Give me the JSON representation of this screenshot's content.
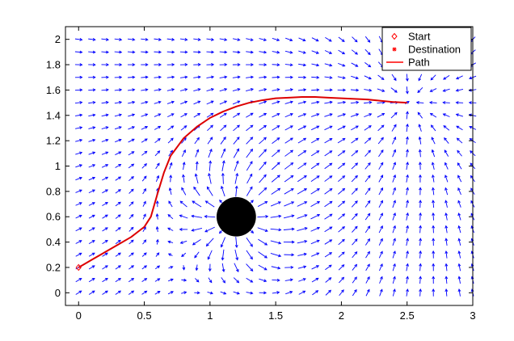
{
  "chart_data": {
    "type": "quiver",
    "title": "",
    "xlabel": "",
    "ylabel": "",
    "xlim": [
      -0.1,
      3.0
    ],
    "ylim": [
      -0.1,
      2.1
    ],
    "xticks": [
      0,
      0.5,
      1,
      1.5,
      2,
      2.5,
      3
    ],
    "xtick_labels": [
      "0",
      "0.5",
      "1",
      "1.5",
      "2",
      "2.5",
      "3"
    ],
    "yticks": [
      0,
      0.2,
      0.4,
      0.6,
      0.8,
      1,
      1.2,
      1.4,
      1.6,
      1.8,
      2
    ],
    "ytick_labels": [
      "0",
      "0.2",
      "0.4",
      "0.6",
      "0.8",
      "1",
      "1.2",
      "1.4",
      "1.6",
      "1.8",
      "2"
    ],
    "grid": false,
    "legend_position": "top-right",
    "start": {
      "x": 0,
      "y": 0.2
    },
    "destination": {
      "x": 2.5,
      "y": 1.5
    },
    "obstacle": {
      "x": 1.2,
      "y": 0.6,
      "radius": 0.15
    },
    "vector_field": {
      "x_start": 0,
      "x_end": 3,
      "x_step": 0.1,
      "y_start": 0,
      "y_end": 2,
      "y_step": 0.1,
      "model": "attractive field toward destination plus repulsive field around obstacle"
    },
    "path": {
      "x": [
        0,
        0.1,
        0.2,
        0.3,
        0.4,
        0.5,
        0.55,
        0.6,
        0.65,
        0.7,
        0.8,
        0.9,
        1.0,
        1.1,
        1.2,
        1.3,
        1.4,
        1.5,
        1.6,
        1.7,
        1.8,
        1.9,
        2.0,
        2.1,
        2.2,
        2.3,
        2.4,
        2.5
      ],
      "y": [
        0.2,
        0.26,
        0.32,
        0.38,
        0.44,
        0.52,
        0.6,
        0.78,
        0.95,
        1.08,
        1.22,
        1.31,
        1.38,
        1.43,
        1.47,
        1.5,
        1.52,
        1.535,
        1.54,
        1.545,
        1.545,
        1.54,
        1.535,
        1.53,
        1.525,
        1.515,
        1.505,
        1.5
      ]
    },
    "series": [
      {
        "name": "Start",
        "color": "#ff0000",
        "marker": "diamond"
      },
      {
        "name": "Destination",
        "color": "#ff0000",
        "marker": "asterisk"
      },
      {
        "name": "Path",
        "color": "#ff0000",
        "line": "solid"
      }
    ],
    "colors": {
      "arrows": "#0000ff",
      "path": "#dd0000",
      "obstacle": "#000000"
    }
  }
}
